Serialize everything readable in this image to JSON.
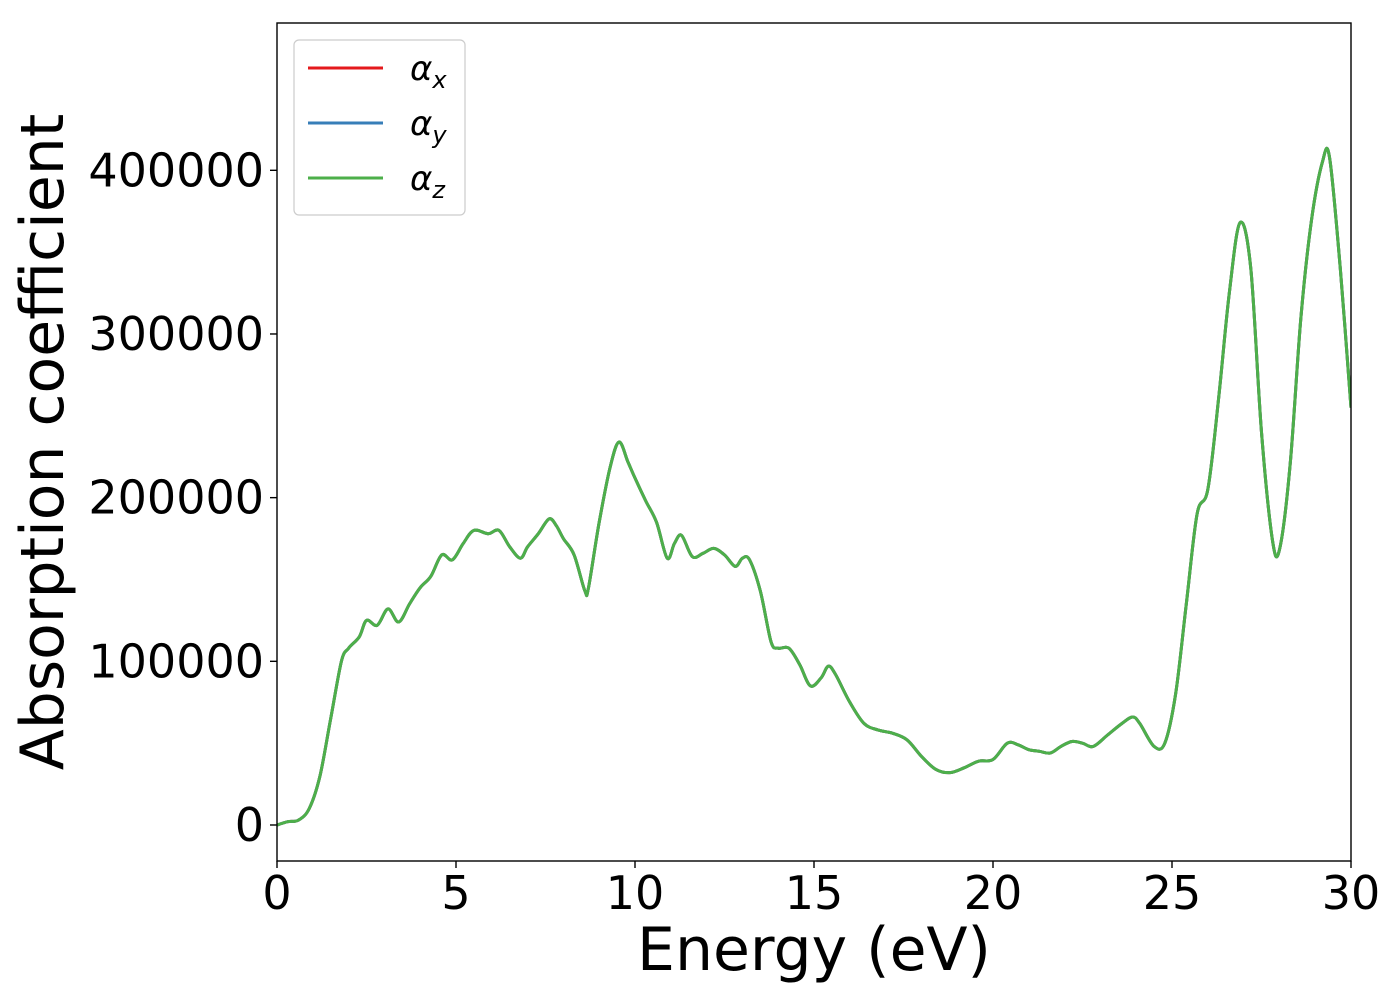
{
  "chart_data": {
    "type": "line",
    "xlabel": "Energy (eV)",
    "ylabel": "Absorption coefficient",
    "xlim": [
      0,
      30
    ],
    "ylim": [
      -22000,
      490000
    ],
    "grid": false,
    "legend_position": "top-left",
    "x_ticks": [
      "0",
      "5",
      "10",
      "15",
      "20",
      "25",
      "30"
    ],
    "y_ticks": [
      "0",
      "100000",
      "200000",
      "300000",
      "400000"
    ],
    "series": [
      {
        "name": "α",
        "subscript": "x",
        "color": "#e41a1c"
      },
      {
        "name": "α",
        "subscript": "y",
        "color": "#377eb8"
      },
      {
        "name": "α",
        "subscript": "z",
        "color": "#4daf4a"
      }
    ],
    "x": [
      0,
      0.3,
      0.6,
      0.9,
      1.2,
      1.5,
      1.8,
      2.0,
      2.3,
      2.5,
      2.8,
      3.1,
      3.4,
      3.7,
      4.0,
      4.3,
      4.6,
      4.9,
      5.2,
      5.5,
      5.9,
      6.2,
      6.5,
      6.8,
      7.0,
      7.3,
      7.6,
      7.8,
      8.0,
      8.3,
      8.6,
      8.7,
      9.0,
      9.3,
      9.55,
      9.8,
      10.0,
      10.3,
      10.6,
      10.9,
      11.1,
      11.3,
      11.6,
      11.9,
      12.2,
      12.5,
      12.8,
      13.0,
      13.2,
      13.5,
      13.8,
      14.0,
      14.3,
      14.6,
      14.9,
      15.2,
      15.4,
      15.6,
      16.0,
      16.4,
      16.8,
      17.2,
      17.6,
      18.0,
      18.4,
      18.8,
      19.2,
      19.6,
      20.0,
      20.4,
      20.7,
      21.0,
      21.3,
      21.6,
      21.9,
      22.2,
      22.5,
      22.8,
      23.2,
      23.6,
      23.9,
      24.1,
      24.5,
      24.8,
      25.1,
      25.4,
      25.7,
      26.0,
      26.3,
      26.6,
      26.9,
      27.2,
      27.5,
      27.8,
      28.0,
      28.3,
      28.6,
      28.9,
      29.2,
      29.4,
      29.7,
      30.0
    ],
    "values": [
      0,
      2000,
      3000,
      10000,
      30000,
      65000,
      100000,
      108000,
      115000,
      125000,
      122000,
      132000,
      124000,
      135000,
      145000,
      152000,
      165000,
      162000,
      172000,
      180000,
      178000,
      180000,
      170000,
      163000,
      170000,
      178000,
      187000,
      183000,
      175000,
      165000,
      143000,
      145000,
      185000,
      218000,
      234000,
      222000,
      212000,
      198000,
      185000,
      163000,
      172000,
      177000,
      164000,
      166000,
      169000,
      165000,
      158000,
      163000,
      162000,
      143000,
      112000,
      108000,
      108000,
      98000,
      85000,
      90000,
      97000,
      92000,
      75000,
      62000,
      58000,
      56000,
      52000,
      42000,
      34000,
      32000,
      35000,
      39000,
      40000,
      50000,
      49000,
      46000,
      45000,
      44000,
      48000,
      51000,
      50000,
      48000,
      55000,
      62000,
      66000,
      62000,
      48000,
      50000,
      80000,
      135000,
      190000,
      205000,
      260000,
      325000,
      368000,
      340000,
      240000,
      175000,
      168000,
      220000,
      310000,
      370000,
      405000,
      408000,
      340000,
      255000
    ]
  }
}
